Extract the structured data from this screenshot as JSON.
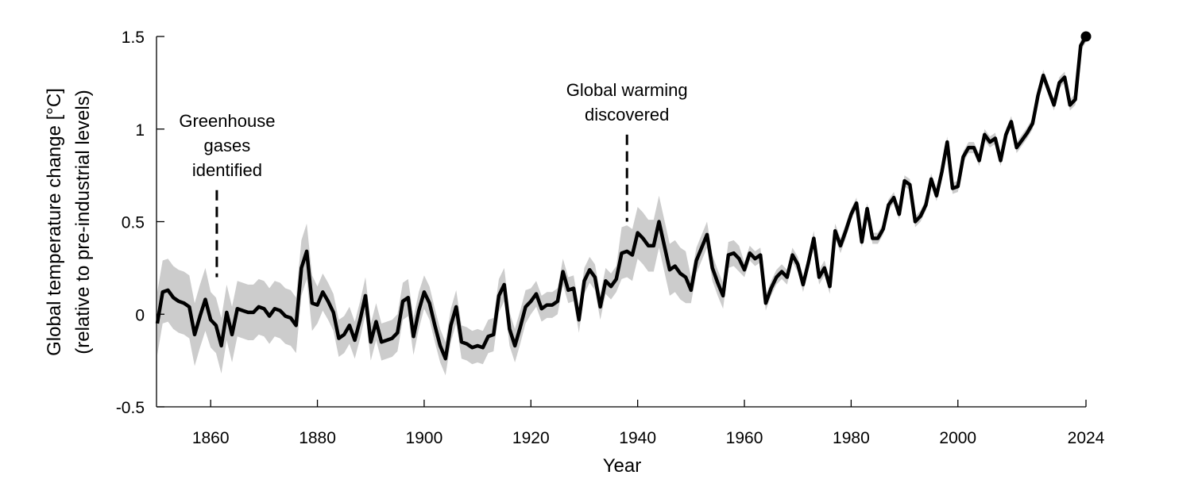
{
  "chart_data": {
    "type": "line",
    "title": "",
    "xlabel": "Year",
    "ylabel": [
      "Global temperature change [°C]",
      "(relative to pre-industrial levels)"
    ],
    "xlim": [
      1850,
      2024
    ],
    "ylim": [
      -0.5,
      1.5
    ],
    "x_ticks": [
      1860,
      1880,
      1900,
      1920,
      1940,
      1960,
      1980,
      2000,
      2024
    ],
    "x_tick_labels": [
      "1860",
      "1880",
      "1900",
      "1920",
      "1940",
      "1960",
      "1980",
      "2000",
      "2024"
    ],
    "y_ticks": [
      1.5,
      1,
      0.5,
      0,
      -0.5
    ],
    "y_tick_labels": [
      "1.5",
      "1",
      "0.5",
      "0",
      "-0.5"
    ],
    "grid": false,
    "line_color": "#000000",
    "band_color": "#cccccc",
    "start_year": 1850,
    "values": [
      -0.05,
      0.12,
      0.13,
      0.09,
      0.07,
      0.06,
      0.04,
      -0.11,
      -0.01,
      0.08,
      -0.03,
      -0.06,
      -0.17,
      0.01,
      -0.11,
      0.03,
      0.02,
      0.01,
      0.01,
      0.04,
      0.03,
      -0.01,
      0.03,
      0.02,
      -0.01,
      -0.02,
      -0.06,
      0.25,
      0.34,
      0.06,
      0.05,
      0.12,
      0.07,
      0.01,
      -0.13,
      -0.11,
      -0.06,
      -0.14,
      -0.03,
      0.1,
      -0.15,
      -0.04,
      -0.15,
      -0.14,
      -0.13,
      -0.1,
      0.07,
      0.09,
      -0.12,
      0.02,
      0.12,
      0.06,
      -0.06,
      -0.17,
      -0.24,
      -0.06,
      0.04,
      -0.15,
      -0.16,
      -0.18,
      -0.17,
      -0.18,
      -0.12,
      -0.11,
      0.1,
      0.16,
      -0.08,
      -0.17,
      -0.07,
      0.04,
      0.07,
      0.11,
      0.03,
      0.05,
      0.05,
      0.07,
      0.23,
      0.13,
      0.14,
      -0.03,
      0.18,
      0.24,
      0.2,
      0.04,
      0.18,
      0.15,
      0.19,
      0.33,
      0.34,
      0.32,
      0.44,
      0.41,
      0.37,
      0.37,
      0.5,
      0.37,
      0.24,
      0.26,
      0.22,
      0.2,
      0.13,
      0.29,
      0.36,
      0.43,
      0.25,
      0.17,
      0.1,
      0.32,
      0.33,
      0.3,
      0.24,
      0.33,
      0.3,
      0.32,
      0.06,
      0.14,
      0.2,
      0.23,
      0.2,
      0.32,
      0.27,
      0.16,
      0.28,
      0.41,
      0.2,
      0.25,
      0.15,
      0.45,
      0.37,
      0.45,
      0.54,
      0.6,
      0.39,
      0.57,
      0.41,
      0.41,
      0.46,
      0.59,
      0.63,
      0.54,
      0.72,
      0.7,
      0.5,
      0.53,
      0.59,
      0.73,
      0.64,
      0.77,
      0.93,
      0.68,
      0.69,
      0.85,
      0.9,
      0.9,
      0.83,
      0.97,
      0.93,
      0.95,
      0.83,
      0.97,
      1.04,
      0.9,
      0.94,
      0.98,
      1.03,
      1.18,
      1.29,
      1.21,
      1.13,
      1.25,
      1.28,
      1.13,
      1.16,
      1.45,
      1.5
    ],
    "uncertainty": [
      0.17,
      0.17,
      0.17,
      0.17,
      0.17,
      0.17,
      0.17,
      0.17,
      0.17,
      0.17,
      0.15,
      0.15,
      0.15,
      0.15,
      0.15,
      0.15,
      0.15,
      0.15,
      0.15,
      0.15,
      0.15,
      0.15,
      0.15,
      0.15,
      0.15,
      0.15,
      0.15,
      0.15,
      0.15,
      0.15,
      0.1,
      0.1,
      0.1,
      0.1,
      0.1,
      0.1,
      0.1,
      0.1,
      0.1,
      0.1,
      0.1,
      0.1,
      0.1,
      0.1,
      0.1,
      0.1,
      0.1,
      0.1,
      0.1,
      0.1,
      0.09,
      0.09,
      0.09,
      0.09,
      0.09,
      0.09,
      0.09,
      0.09,
      0.09,
      0.09,
      0.09,
      0.09,
      0.09,
      0.09,
      0.09,
      0.09,
      0.09,
      0.09,
      0.09,
      0.09,
      0.07,
      0.07,
      0.07,
      0.07,
      0.07,
      0.07,
      0.07,
      0.07,
      0.07,
      0.07,
      0.07,
      0.07,
      0.07,
      0.07,
      0.07,
      0.07,
      0.07,
      0.14,
      0.14,
      0.14,
      0.14,
      0.14,
      0.14,
      0.14,
      0.14,
      0.14,
      0.14,
      0.14,
      0.14,
      0.14,
      0.07,
      0.07,
      0.07,
      0.07,
      0.07,
      0.07,
      0.07,
      0.07,
      0.07,
      0.07,
      0.04,
      0.04,
      0.04,
      0.04,
      0.04,
      0.04,
      0.04,
      0.04,
      0.04,
      0.04,
      0.04,
      0.04,
      0.04,
      0.04,
      0.04,
      0.04,
      0.04,
      0.04,
      0.04,
      0.04,
      0.03,
      0.03,
      0.03,
      0.03,
      0.03,
      0.03,
      0.03,
      0.03,
      0.03,
      0.03,
      0.03,
      0.03,
      0.03,
      0.03,
      0.03,
      0.03,
      0.03,
      0.03,
      0.03,
      0.03,
      0.03,
      0.03,
      0.03,
      0.03,
      0.03,
      0.03,
      0.03,
      0.03,
      0.03,
      0.03,
      0.03,
      0.03,
      0.03,
      0.03,
      0.03,
      0.03,
      0.03,
      0.03,
      0.03,
      0.03,
      0.03,
      0.03,
      0.03,
      0.03,
      0.03
    ],
    "endpoint_marker": {
      "year": 2024,
      "value": 1.5
    },
    "annotations": [
      {
        "year": 1861,
        "lines": [
          "Greenhouse",
          "gases",
          "identified"
        ],
        "marker_top": 0.67,
        "marker_bottom": 0.2
      },
      {
        "year": 1938,
        "lines": [
          "Global warming",
          "discovered"
        ],
        "marker_top": 0.97,
        "marker_bottom": 0.5
      }
    ]
  }
}
